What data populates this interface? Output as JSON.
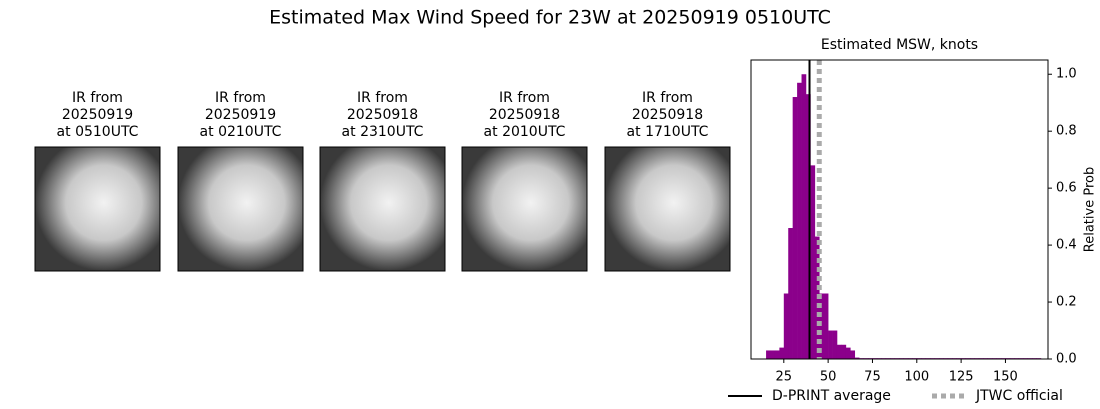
{
  "title": "Estimated Max Wind Speed for 23W at 20250919 0510UTC",
  "panels": [
    {
      "lines": [
        "IR from",
        "20250919",
        "at 0510UTC"
      ]
    },
    {
      "lines": [
        "IR from",
        "20250919",
        "at 0210UTC"
      ]
    },
    {
      "lines": [
        "IR from",
        "20250918",
        "at 2310UTC"
      ]
    },
    {
      "lines": [
        "IR from",
        "20250918",
        "at 2010UTC"
      ]
    },
    {
      "lines": [
        "IR from",
        "20250918",
        "at 1710UTC"
      ]
    }
  ],
  "chart_data": {
    "type": "histogram",
    "title": "Estimated MSW, knots",
    "y_label": "Relative Prob",
    "color": "#8b008b",
    "bins": [
      15,
      17.5,
      20,
      22.5,
      25,
      27.5,
      30,
      32.5,
      35,
      37.5,
      40,
      42.5,
      45,
      47.5,
      50,
      52.5,
      55,
      57.5,
      60,
      62.5,
      65,
      67.5,
      70,
      72.5,
      75,
      77.5,
      80,
      82.5,
      85,
      87.5,
      90,
      92.5,
      95,
      97.5,
      100,
      102.5,
      105,
      107.5,
      110,
      112.5,
      115,
      117.5,
      120,
      122.5,
      125,
      127.5,
      130,
      132.5,
      135,
      137.5,
      140,
      142.5,
      145,
      147.5,
      150,
      152.5,
      155,
      157.5,
      160,
      162.5,
      165,
      167.5,
      170
    ],
    "values": [
      0.03,
      0.03,
      0.03,
      0.04,
      0.23,
      0.46,
      0.92,
      0.97,
      1.0,
      0.93,
      0.68,
      0.43,
      0.23,
      0.23,
      0.1,
      0.1,
      0.05,
      0.05,
      0.04,
      0.03,
      0.005,
      0.003,
      0.003,
      0.003,
      0.003,
      0.003,
      0.003,
      0.003,
      0.003,
      0.003,
      0.003,
      0.003,
      0.003,
      0.003,
      0.003,
      0.003,
      0.003,
      0.003,
      0.003,
      0.003,
      0.003,
      0.003,
      0.003,
      0.003,
      0.003,
      0.003,
      0.003,
      0.003,
      0.003,
      0.003,
      0.003,
      0.003,
      0.003,
      0.003,
      0.003,
      0.003,
      0.003,
      0.003,
      0.003,
      0.003,
      0.003,
      0.003
    ],
    "xlim": [
      6.5,
      174
    ],
    "ylim": [
      0,
      1.05
    ],
    "xticks": [
      25,
      50,
      75,
      100,
      125,
      150
    ],
    "yticks": [
      {
        "value": 0,
        "label": "0.0"
      },
      {
        "value": 0.2,
        "label": "0.2"
      },
      {
        "value": 0.4,
        "label": "0.4"
      },
      {
        "value": 0.6,
        "label": "0.6"
      },
      {
        "value": 0.8,
        "label": "0.8"
      },
      {
        "value": 1,
        "label": "1.0"
      }
    ],
    "y_axis_side": "right",
    "lines": [
      {
        "name": "D-PRINT average",
        "x": 39.5,
        "color": "#000000",
        "style": "solid"
      },
      {
        "name": "JTWC official",
        "x": 45,
        "color": "#aaaaaa",
        "style": "dotted"
      }
    ]
  }
}
